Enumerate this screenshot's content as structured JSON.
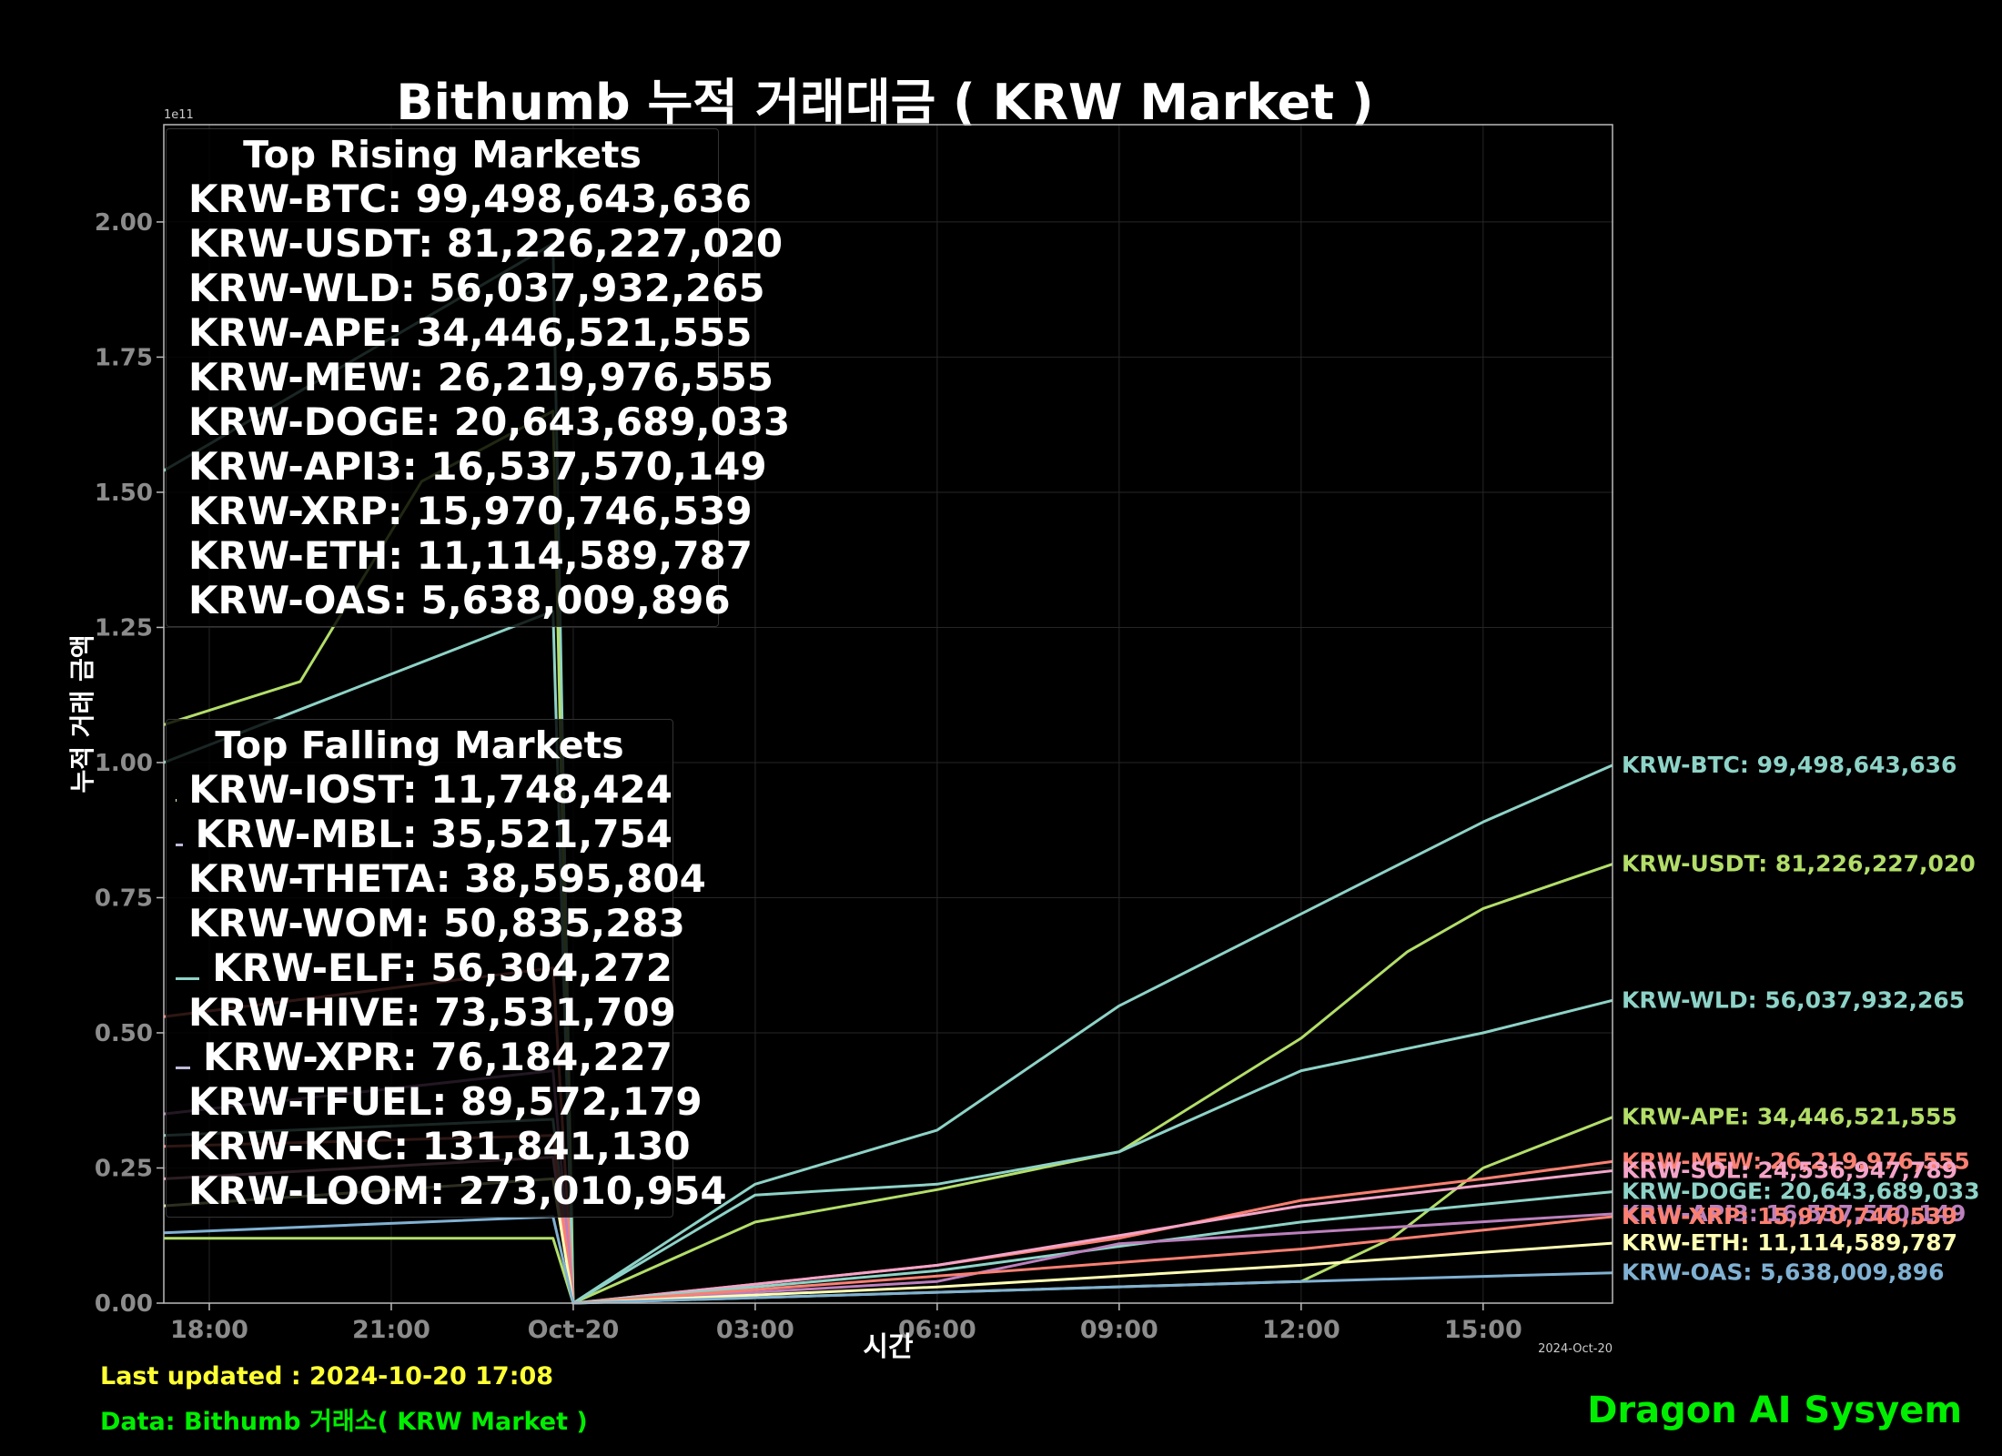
{
  "title": "Bithumb 누적 거래대금 ( KRW Market )",
  "footer": {
    "last_updated": "Last updated : 2024-10-20 17:08",
    "source": "Data: Bithumb 거래소( KRW Market )",
    "brand": "Dragon AI Sysyem"
  },
  "legend_rising": {
    "title": "Top Rising Markets",
    "items": [
      {
        "label": "KRW-BTC: 99,498,643,636",
        "color": "#8ed3c7"
      },
      {
        "label": "KRW-USDT: 81,226,227,020",
        "color": "#b3de69"
      },
      {
        "label": "KRW-WLD: 56,037,932,265",
        "color": "#8ed3c7"
      },
      {
        "label": "KRW-APE: 34,446,521,555",
        "color": "#b3de69"
      },
      {
        "label": "KRW-MEW: 26,219,976,555",
        "color": "#fb8072"
      },
      {
        "label": "KRW-DOGE: 20,643,689,033",
        "color": "#8ed3c7"
      },
      {
        "label": "KRW-API3: 16,537,570,149",
        "color": "#bc80bd"
      },
      {
        "label": "KRW-XRP: 15,970,746,539",
        "color": "#fb8072"
      },
      {
        "label": "KRW-ETH: 11,114,589,787",
        "color": "#ffffb3"
      },
      {
        "label": "KRW-OAS: 5,638,009,896",
        "color": "#80b1d3"
      }
    ]
  },
  "legend_falling": {
    "title": "Top Falling Markets",
    "items": [
      {
        "label": "KRW-IOST: 11,748,424",
        "color": "#ffffb3"
      },
      {
        "label": "KRW-MBL: 35,521,754",
        "color": "#bebada"
      },
      {
        "label": "KRW-THETA: 38,595,804",
        "color": "#fb8072"
      },
      {
        "label": "KRW-WOM: 50,835,283",
        "color": "#fdb462"
      },
      {
        "label": "KRW-ELF: 56,304,272",
        "color": "#8ed3c7"
      },
      {
        "label": "KRW-HIVE: 73,531,709",
        "color": "#ffed6f"
      },
      {
        "label": "KRW-XPR: 76,184,227",
        "color": "#bebada"
      },
      {
        "label": "KRW-TFUEL: 89,572,179",
        "color": "#fdb462"
      },
      {
        "label": "KRW-KNC: 131,841,130",
        "color": "#ffffb3"
      },
      {
        "label": "KRW-LOOM: 273,010,954",
        "color": "#80b1d3"
      }
    ]
  },
  "chart_data": {
    "type": "line",
    "title": "Bithumb 누적 거래대금 ( KRW Market )",
    "xlabel": "시간",
    "ylabel": "누적 거래 금액",
    "y_scale_label": "1e11",
    "x_offset_label": "2024-Oct-20",
    "ylim": [
      0,
      2.18
    ],
    "xlim": [
      "2024-10-19 17:15",
      "2024-10-20 17:08"
    ],
    "x_ticks": [
      "18:00",
      "21:00",
      "Oct-20",
      "03:00",
      "06:00",
      "09:00",
      "12:00",
      "15:00"
    ],
    "y_ticks": [
      "0.00",
      "0.25",
      "0.50",
      "0.75",
      "1.00",
      "1.25",
      "1.50",
      "1.75",
      "2.00"
    ],
    "grid": true,
    "series": [
      {
        "name": "KRW-BTC",
        "color": "#8ed3c7",
        "label": "KRW-BTC: 99,498,643,636",
        "x": [
          "2024-10-19 17:15",
          "2024-10-19 20:00",
          "2024-10-19 23:40",
          "2024-10-20 00:00",
          "2024-10-20 03:00",
          "2024-10-20 06:00",
          "2024-10-20 09:00",
          "2024-10-20 12:00",
          "2024-10-20 15:00",
          "2024-10-20 17:08"
        ],
        "values": [
          1.54,
          1.72,
          1.96,
          0.0,
          0.22,
          0.32,
          0.55,
          0.72,
          0.89,
          0.995
        ]
      },
      {
        "name": "KRW-USDT",
        "color": "#b3de69",
        "label": "KRW-USDT: 81,226,227,020",
        "x": [
          "2024-10-19 17:15",
          "2024-10-19 19:30",
          "2024-10-19 21:30",
          "2024-10-19 23:40",
          "2024-10-20 00:00",
          "2024-10-20 03:00",
          "2024-10-20 06:00",
          "2024-10-20 09:00",
          "2024-10-20 12:00",
          "2024-10-20 13:45",
          "2024-10-20 15:00",
          "2024-10-20 17:08"
        ],
        "values": [
          1.07,
          1.15,
          1.52,
          1.65,
          0.0,
          0.15,
          0.21,
          0.28,
          0.49,
          0.65,
          0.73,
          0.812
        ]
      },
      {
        "name": "KRW-WLD",
        "color": "#8ed3c7",
        "label": "KRW-WLD: 56,037,932,265",
        "x": [
          "2024-10-19 17:15",
          "2024-10-19 20:00",
          "2024-10-19 23:40",
          "2024-10-20 00:00",
          "2024-10-20 03:00",
          "2024-10-20 06:00",
          "2024-10-20 09:00",
          "2024-10-20 12:00",
          "2024-10-20 15:00",
          "2024-10-20 17:08"
        ],
        "values": [
          1.0,
          1.12,
          1.28,
          0.0,
          0.2,
          0.22,
          0.28,
          0.43,
          0.5,
          0.56
        ]
      },
      {
        "name": "KRW-APE",
        "color": "#b3de69",
        "label": "KRW-APE: 34,446,521,555",
        "x": [
          "2024-10-19 17:15",
          "2024-10-19 23:40",
          "2024-10-20 00:00",
          "2024-10-20 06:00",
          "2024-10-20 12:00",
          "2024-10-20 13:30",
          "2024-10-20 15:00",
          "2024-10-20 17:08"
        ],
        "values": [
          0.12,
          0.12,
          0.0,
          0.02,
          0.04,
          0.12,
          0.25,
          0.344
        ]
      },
      {
        "name": "KRW-MEW",
        "color": "#fb8072",
        "label": "KRW-MEW: 26,219,976,555",
        "x": [
          "2024-10-19 17:15",
          "2024-10-19 23:40",
          "2024-10-20 00:00",
          "2024-10-20 06:00",
          "2024-10-20 09:00",
          "2024-10-20 12:00",
          "2024-10-20 15:00",
          "2024-10-20 17:08"
        ],
        "values": [
          0.53,
          0.62,
          0.0,
          0.07,
          0.12,
          0.19,
          0.23,
          0.262
        ]
      },
      {
        "name": "KRW-SOL",
        "color": "#f4a4c8",
        "label": "KRW-SOL: 24,536,947,789",
        "x": [
          "2024-10-19 17:15",
          "2024-10-19 23:40",
          "2024-10-20 00:00",
          "2024-10-20 06:00",
          "2024-10-20 12:00",
          "2024-10-20 17:08"
        ],
        "values": [
          0.23,
          0.27,
          0.0,
          0.07,
          0.18,
          0.245
        ]
      },
      {
        "name": "KRW-DOGE",
        "color": "#8ed3c7",
        "label": "KRW-DOGE: 20,643,689,033",
        "x": [
          "2024-10-19 17:15",
          "2024-10-19 23:40",
          "2024-10-20 00:00",
          "2024-10-20 06:00",
          "2024-10-20 12:00",
          "2024-10-20 17:08"
        ],
        "values": [
          0.31,
          0.34,
          0.0,
          0.06,
          0.15,
          0.206
        ]
      },
      {
        "name": "KRW-API3",
        "color": "#bc80bd",
        "label": "KRW-API3: 16,537,570,149",
        "x": [
          "2024-10-19 17:15",
          "2024-10-19 23:40",
          "2024-10-20 00:00",
          "2024-10-20 06:00",
          "2024-10-20 09:00",
          "2024-10-20 17:08"
        ],
        "values": [
          0.35,
          0.43,
          0.0,
          0.04,
          0.11,
          0.165
        ]
      },
      {
        "name": "KRW-XRP",
        "color": "#fb8072",
        "label": "KRW-XRP: 15,970,746,539",
        "x": [
          "2024-10-19 17:15",
          "2024-10-19 23:40",
          "2024-10-20 00:00",
          "2024-10-20 06:00",
          "2024-10-20 12:00",
          "2024-10-20 17:08"
        ],
        "values": [
          0.29,
          0.31,
          0.0,
          0.05,
          0.1,
          0.16
        ]
      },
      {
        "name": "KRW-ETH",
        "color": "#ffffb3",
        "label": "KRW-ETH: 11,114,589,787",
        "x": [
          "2024-10-19 17:15",
          "2024-10-19 23:40",
          "2024-10-20 00:00",
          "2024-10-20 06:00",
          "2024-10-20 12:00",
          "2024-10-20 17:08"
        ],
        "values": [
          0.18,
          0.23,
          0.0,
          0.03,
          0.07,
          0.111
        ]
      },
      {
        "name": "KRW-OAS",
        "color": "#80b1d3",
        "label": "KRW-OAS: 5,638,009,896",
        "x": [
          "2024-10-19 17:15",
          "2024-10-19 23:40",
          "2024-10-20 00:00",
          "2024-10-20 06:00",
          "2024-10-20 12:00",
          "2024-10-20 17:08"
        ],
        "values": [
          0.13,
          0.16,
          0.0,
          0.02,
          0.04,
          0.056
        ]
      }
    ]
  }
}
